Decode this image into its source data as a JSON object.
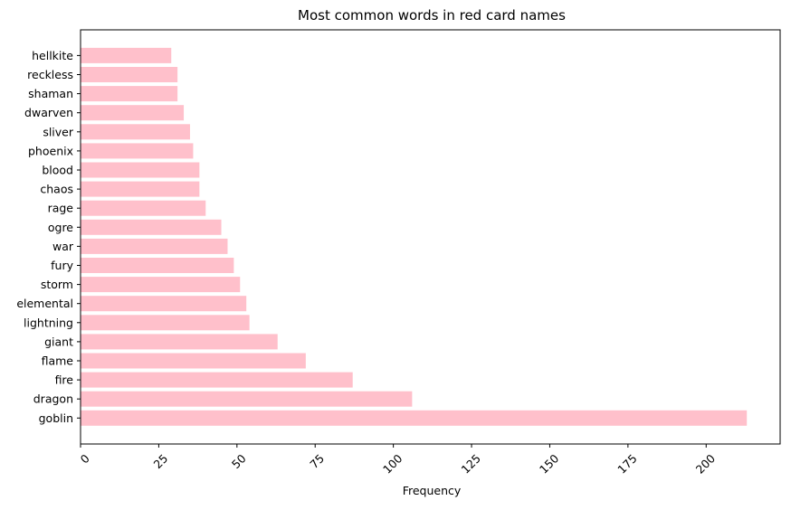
{
  "chart_data": {
    "type": "bar",
    "orientation": "horizontal",
    "title": "Most common words in red card names",
    "xlabel": "Frequency",
    "ylabel": "",
    "categories": [
      "goblin",
      "dragon",
      "fire",
      "flame",
      "giant",
      "lightning",
      "elemental",
      "storm",
      "fury",
      "war",
      "ogre",
      "rage",
      "chaos",
      "blood",
      "phoenix",
      "sliver",
      "dwarven",
      "shaman",
      "reckless",
      "hellkite"
    ],
    "values": [
      213,
      106,
      87,
      72,
      63,
      54,
      53,
      51,
      49,
      47,
      45,
      40,
      38,
      38,
      36,
      35,
      33,
      31,
      31,
      29
    ],
    "xlim": [
      0,
      223.65
    ],
    "xticks": [
      0,
      25,
      50,
      75,
      100,
      125,
      150,
      175,
      200
    ],
    "xtick_rotation": 45,
    "grid": false,
    "bar_color": "#ffc0cb"
  }
}
